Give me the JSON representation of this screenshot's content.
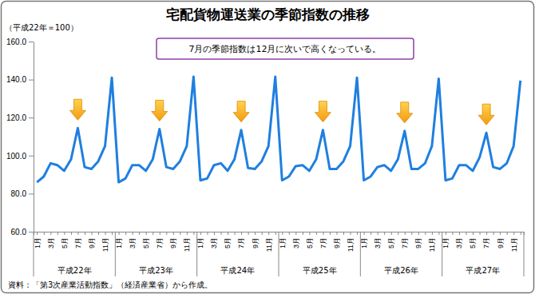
{
  "chart_data": {
    "type": "line",
    "title": "宅配貨物運送業の季節指数の推移",
    "y_label": "（平成22年＝100）",
    "annotation": "7月の季節指数は12月に次いで高くなっている。",
    "source": "資料：「第3次産業活動指数」（経済産業省）から作成。",
    "categories": [
      "1月",
      null,
      "3月",
      null,
      "5月",
      null,
      "7月",
      null,
      "9月",
      null,
      "11月",
      null,
      "1月",
      null,
      "3月",
      null,
      "5月",
      null,
      "7月",
      null,
      "9月",
      null,
      "11月",
      null,
      "1月",
      null,
      "3月",
      null,
      "5月",
      null,
      "7月",
      null,
      "9月",
      null,
      "11月",
      null,
      "1月",
      null,
      "3月",
      null,
      "5月",
      null,
      "7月",
      null,
      "9月",
      null,
      "11月",
      null,
      "1月",
      null,
      "3月",
      null,
      "5月",
      null,
      "7月",
      null,
      "9月",
      null,
      "11月",
      null,
      "1月",
      null,
      "3月",
      null,
      "5月",
      null,
      "7月",
      null,
      "9月",
      null,
      "11月",
      null
    ],
    "groups": [
      "平成22年",
      "平成23年",
      "平成24年",
      "平成25年",
      "平成26年",
      "平成27年"
    ],
    "values": [
      86,
      89,
      96,
      95,
      92,
      98,
      114.5,
      94,
      93,
      97,
      105,
      141,
      86,
      88,
      95,
      95,
      92,
      98,
      114,
      94,
      93,
      97,
      105,
      141.5,
      87,
      88,
      95,
      96,
      92,
      98,
      113.5,
      93.5,
      93,
      97,
      105,
      141.5,
      87,
      89,
      94.5,
      95,
      92,
      98,
      113.5,
      93,
      93,
      97,
      105,
      141,
      87,
      89,
      94,
      95,
      92,
      98,
      113,
      93,
      93,
      96,
      105,
      140.5,
      87,
      88,
      95,
      95,
      92,
      99,
      112,
      94,
      93,
      96,
      105,
      139.5
    ],
    "color": "#1f7fe0",
    "ylim": [
      60,
      160
    ],
    "yticks": [
      {
        "value": 60,
        "label": "60.0"
      },
      {
        "value": 80,
        "label": "80.0"
      },
      {
        "value": 100,
        "label": "100.0"
      },
      {
        "value": 120,
        "label": "120.0"
      },
      {
        "value": 140,
        "label": "140.0"
      },
      {
        "value": 160,
        "label": "160.0"
      }
    ],
    "grid": false
  }
}
